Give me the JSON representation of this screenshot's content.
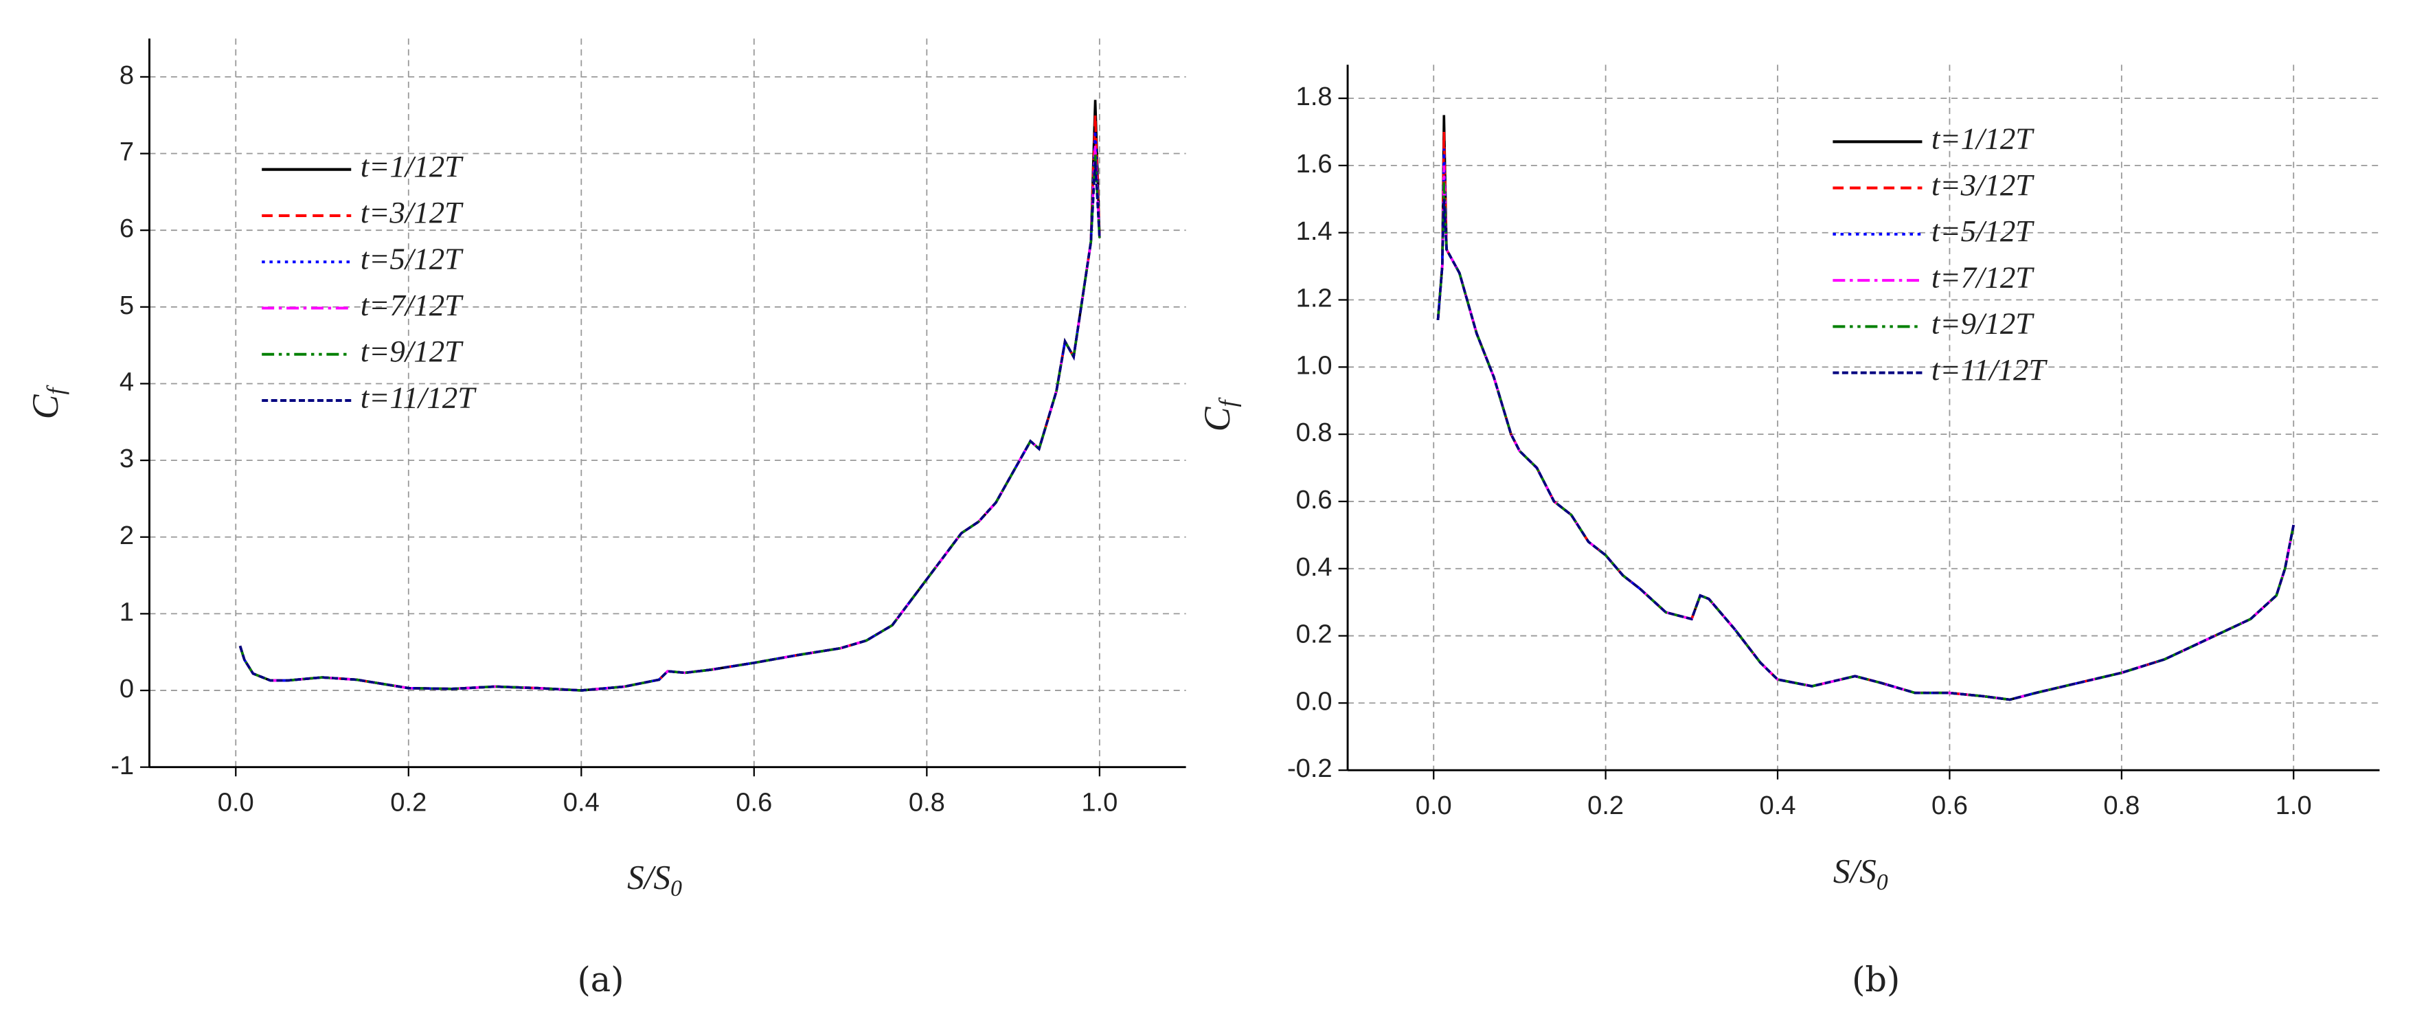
{
  "chart_data": [
    {
      "type": "line",
      "y_label": {
        "text": "C",
        "subscript": "f"
      },
      "x_label": {
        "text": "S/S",
        "subscript": "0"
      },
      "caption": "(a)",
      "xlim": [
        -0.1,
        1.1
      ],
      "xticks": [
        {
          "value": 0,
          "label": "0.0"
        },
        0.2,
        0.4,
        0.6,
        0.8,
        {
          "value": 1,
          "label": "1.0"
        }
      ],
      "ylim": [
        -1,
        8.5
      ],
      "yticks": [
        -1,
        0,
        1,
        2,
        3,
        4,
        5,
        6,
        7,
        8
      ],
      "grid": true,
      "x": [
        0.005,
        0.01,
        0.02,
        0.04,
        0.06,
        0.1,
        0.14,
        0.2,
        0.25,
        0.3,
        0.35,
        0.4,
        0.45,
        0.49,
        0.5,
        0.52,
        0.55,
        0.6,
        0.65,
        0.7,
        0.73,
        0.76,
        0.78,
        0.8,
        0.82,
        0.84,
        0.86,
        0.88,
        0.9,
        0.92,
        0.93,
        0.95,
        0.96,
        0.97,
        0.98,
        0.99,
        0.995,
        1.0
      ],
      "series": [
        {
          "name": "t=1/12T",
          "color": "#000000",
          "style": "solid",
          "values": [
            0.58,
            0.4,
            0.22,
            0.13,
            0.13,
            0.17,
            0.14,
            0.03,
            0.02,
            0.05,
            0.03,
            0.0,
            0.05,
            0.14,
            0.25,
            0.23,
            0.27,
            0.36,
            0.46,
            0.55,
            0.65,
            0.85,
            1.15,
            1.45,
            1.75,
            2.05,
            2.2,
            2.45,
            2.85,
            3.25,
            3.15,
            3.9,
            4.55,
            4.35,
            5.1,
            5.85,
            7.7,
            5.9
          ]
        },
        {
          "name": "t=3/12T",
          "color": "#ff0000",
          "style": "dash",
          "values": [
            0.58,
            0.4,
            0.22,
            0.13,
            0.13,
            0.17,
            0.14,
            0.03,
            0.02,
            0.05,
            0.03,
            0.0,
            0.05,
            0.14,
            0.25,
            0.23,
            0.27,
            0.36,
            0.46,
            0.55,
            0.65,
            0.85,
            1.15,
            1.45,
            1.75,
            2.05,
            2.2,
            2.45,
            2.85,
            3.25,
            3.15,
            3.9,
            4.55,
            4.35,
            5.1,
            5.85,
            7.5,
            5.9
          ]
        },
        {
          "name": "t=5/12T",
          "color": "#0000ff",
          "style": "dot",
          "values": [
            0.58,
            0.4,
            0.22,
            0.13,
            0.13,
            0.17,
            0.14,
            0.03,
            0.02,
            0.05,
            0.03,
            0.0,
            0.05,
            0.14,
            0.25,
            0.23,
            0.27,
            0.36,
            0.46,
            0.55,
            0.65,
            0.85,
            1.15,
            1.45,
            1.75,
            2.05,
            2.2,
            2.45,
            2.85,
            3.25,
            3.15,
            3.9,
            4.55,
            4.35,
            5.1,
            5.85,
            7.3,
            5.9
          ]
        },
        {
          "name": "t=7/12T",
          "color": "#ff00ff",
          "style": "dashdot",
          "values": [
            0.58,
            0.4,
            0.22,
            0.13,
            0.13,
            0.17,
            0.14,
            0.03,
            0.02,
            0.05,
            0.03,
            0.0,
            0.05,
            0.14,
            0.25,
            0.23,
            0.27,
            0.36,
            0.46,
            0.55,
            0.65,
            0.85,
            1.15,
            1.45,
            1.75,
            2.05,
            2.2,
            2.45,
            2.85,
            3.25,
            3.15,
            3.9,
            4.55,
            4.35,
            5.1,
            5.85,
            7.1,
            5.9
          ]
        },
        {
          "name": "t=9/12T",
          "color": "#008000",
          "style": "dashdotdot",
          "values": [
            0.58,
            0.4,
            0.22,
            0.13,
            0.13,
            0.17,
            0.14,
            0.03,
            0.02,
            0.05,
            0.03,
            0.0,
            0.05,
            0.14,
            0.25,
            0.23,
            0.27,
            0.36,
            0.46,
            0.55,
            0.65,
            0.85,
            1.15,
            1.45,
            1.75,
            2.05,
            2.2,
            2.45,
            2.85,
            3.25,
            3.15,
            3.9,
            4.55,
            4.35,
            5.1,
            5.85,
            7.0,
            5.9
          ]
        },
        {
          "name": "t=11/12T",
          "color": "#000080",
          "style": "shortdash",
          "values": [
            0.58,
            0.4,
            0.22,
            0.13,
            0.13,
            0.17,
            0.14,
            0.03,
            0.02,
            0.05,
            0.03,
            0.0,
            0.05,
            0.14,
            0.25,
            0.23,
            0.27,
            0.36,
            0.46,
            0.55,
            0.65,
            0.85,
            1.15,
            1.45,
            1.75,
            2.05,
            2.2,
            2.45,
            2.85,
            3.25,
            3.15,
            3.9,
            4.55,
            4.35,
            5.1,
            5.85,
            6.9,
            5.9
          ]
        }
      ]
    },
    {
      "type": "line",
      "y_label": {
        "text": "C",
        "subscript": "f"
      },
      "x_label": {
        "text": "S/S",
        "subscript": "0"
      },
      "caption": "(b)",
      "xlim": [
        -0.1,
        1.1
      ],
      "xticks": [
        {
          "value": 0,
          "label": "0.0"
        },
        0.2,
        0.4,
        0.6,
        0.8,
        {
          "value": 1,
          "label": "1.0"
        }
      ],
      "ylim": [
        -0.2,
        1.9
      ],
      "yticks": [
        -0.2,
        {
          "value": 0,
          "label": "0.0"
        },
        0.2,
        0.4,
        0.6,
        0.8,
        {
          "value": 1,
          "label": "1.0"
        },
        1.2,
        1.4,
        1.6,
        1.8
      ],
      "grid": true,
      "x": [
        0.005,
        0.01,
        0.012,
        0.015,
        0.03,
        0.05,
        0.07,
        0.09,
        0.1,
        0.12,
        0.14,
        0.16,
        0.18,
        0.2,
        0.22,
        0.24,
        0.27,
        0.3,
        0.31,
        0.32,
        0.35,
        0.38,
        0.4,
        0.44,
        0.49,
        0.52,
        0.56,
        0.6,
        0.64,
        0.67,
        0.7,
        0.8,
        0.85,
        0.9,
        0.95,
        0.98,
        0.99,
        1.0
      ],
      "series": [
        {
          "name": "t=1/12T",
          "color": "#000000",
          "style": "solid",
          "values": [
            1.14,
            1.3,
            1.75,
            1.35,
            1.28,
            1.1,
            0.97,
            0.8,
            0.75,
            0.7,
            0.6,
            0.56,
            0.48,
            0.44,
            0.38,
            0.34,
            0.27,
            0.25,
            0.32,
            0.31,
            0.22,
            0.12,
            0.07,
            0.05,
            0.08,
            0.06,
            0.03,
            0.03,
            0.02,
            0.01,
            0.03,
            0.09,
            0.13,
            0.19,
            0.25,
            0.32,
            0.4,
            0.53
          ]
        },
        {
          "name": "t=3/12T",
          "color": "#ff0000",
          "style": "dash",
          "values": [
            1.14,
            1.3,
            1.7,
            1.35,
            1.28,
            1.1,
            0.97,
            0.8,
            0.75,
            0.7,
            0.6,
            0.56,
            0.48,
            0.44,
            0.38,
            0.34,
            0.27,
            0.25,
            0.32,
            0.31,
            0.22,
            0.12,
            0.07,
            0.05,
            0.08,
            0.06,
            0.03,
            0.03,
            0.02,
            0.01,
            0.03,
            0.09,
            0.13,
            0.19,
            0.25,
            0.32,
            0.4,
            0.53
          ]
        },
        {
          "name": "t=5/12T",
          "color": "#0000ff",
          "style": "dot",
          "values": [
            1.14,
            1.3,
            1.65,
            1.35,
            1.28,
            1.1,
            0.97,
            0.8,
            0.75,
            0.7,
            0.6,
            0.56,
            0.48,
            0.44,
            0.38,
            0.34,
            0.27,
            0.25,
            0.32,
            0.31,
            0.22,
            0.12,
            0.07,
            0.05,
            0.08,
            0.06,
            0.03,
            0.03,
            0.02,
            0.01,
            0.03,
            0.09,
            0.13,
            0.19,
            0.25,
            0.32,
            0.4,
            0.53
          ]
        },
        {
          "name": "t=7/12T",
          "color": "#ff00ff",
          "style": "dashdot",
          "values": [
            1.14,
            1.3,
            1.6,
            1.35,
            1.28,
            1.1,
            0.97,
            0.8,
            0.75,
            0.7,
            0.6,
            0.56,
            0.48,
            0.44,
            0.38,
            0.34,
            0.27,
            0.25,
            0.32,
            0.31,
            0.22,
            0.12,
            0.07,
            0.05,
            0.08,
            0.06,
            0.03,
            0.03,
            0.02,
            0.01,
            0.03,
            0.09,
            0.13,
            0.19,
            0.25,
            0.32,
            0.4,
            0.53
          ]
        },
        {
          "name": "t=9/12T",
          "color": "#008000",
          "style": "dashdotdot",
          "values": [
            1.14,
            1.3,
            1.55,
            1.35,
            1.28,
            1.1,
            0.97,
            0.8,
            0.75,
            0.7,
            0.6,
            0.56,
            0.48,
            0.44,
            0.38,
            0.34,
            0.27,
            0.25,
            0.32,
            0.31,
            0.22,
            0.12,
            0.07,
            0.05,
            0.08,
            0.06,
            0.03,
            0.03,
            0.02,
            0.01,
            0.03,
            0.09,
            0.13,
            0.19,
            0.25,
            0.32,
            0.4,
            0.53
          ]
        },
        {
          "name": "t=11/12T",
          "color": "#000080",
          "style": "shortdash",
          "values": [
            1.14,
            1.3,
            1.5,
            1.35,
            1.28,
            1.1,
            0.97,
            0.8,
            0.75,
            0.7,
            0.6,
            0.56,
            0.48,
            0.44,
            0.38,
            0.34,
            0.27,
            0.25,
            0.32,
            0.31,
            0.22,
            0.12,
            0.07,
            0.05,
            0.08,
            0.06,
            0.03,
            0.03,
            0.02,
            0.01,
            0.03,
            0.09,
            0.13,
            0.19,
            0.25,
            0.32,
            0.4,
            0.53
          ]
        }
      ]
    }
  ]
}
